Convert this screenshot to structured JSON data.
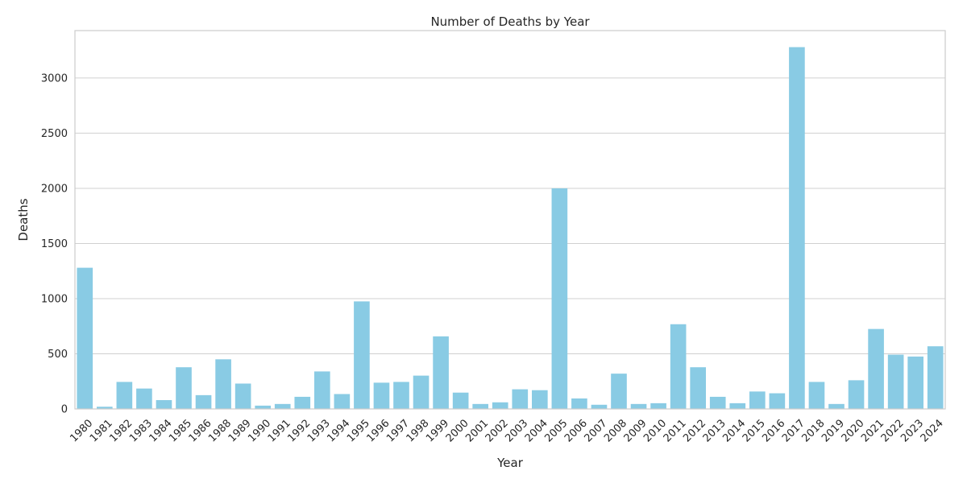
{
  "chart_data": {
    "type": "bar",
    "title": "Number of Deaths by Year",
    "xlabel": "Year",
    "ylabel": "Deaths",
    "ylim": [
      0,
      3430
    ],
    "yticks": [
      0,
      500,
      1000,
      1500,
      2000,
      2500,
      3000
    ],
    "grid": "horizontal",
    "bar_color": "#89CBE4",
    "categories": [
      "1980",
      "1981",
      "1982",
      "1983",
      "1984",
      "1985",
      "1986",
      "1988",
      "1989",
      "1990",
      "1991",
      "1992",
      "1993",
      "1994",
      "1995",
      "1996",
      "1997",
      "1998",
      "1999",
      "2000",
      "2001",
      "2002",
      "2003",
      "2004",
      "2005",
      "2006",
      "2007",
      "2008",
      "2009",
      "2010",
      "2011",
      "2012",
      "2013",
      "2014",
      "2015",
      "2016",
      "2017",
      "2018",
      "2019",
      "2020",
      "2021",
      "2022",
      "2023",
      "2024"
    ],
    "values": [
      1280,
      20,
      245,
      185,
      80,
      378,
      125,
      450,
      230,
      30,
      45,
      110,
      340,
      135,
      975,
      238,
      245,
      302,
      658,
      148,
      45,
      60,
      178,
      170,
      2000,
      95,
      38,
      320,
      45,
      52,
      768,
      378,
      110,
      52,
      158,
      142,
      3280,
      245,
      45,
      260,
      725,
      492,
      475,
      568
    ]
  }
}
